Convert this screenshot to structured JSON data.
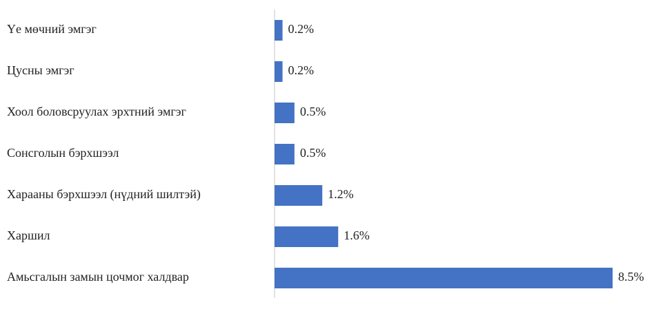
{
  "chart_data": {
    "type": "bar",
    "orientation": "horizontal",
    "categories": [
      "Үе мөчний эмгэг",
      "Цусны эмгэг",
      "Хоол боловсруулах эрхтний эмгэг",
      "Сонсголын бэрхшээл",
      "Харааны бэрхшээл (нүдний шилтэй)",
      "Харшил",
      "Амьсгалын замын цочмог халдвар"
    ],
    "values": [
      0.2,
      0.2,
      0.5,
      0.5,
      1.2,
      1.6,
      8.5
    ],
    "value_labels": [
      "0.2%",
      "0.2%",
      "0.5%",
      "0.5%",
      "1.2%",
      "1.6%",
      "8.5%"
    ],
    "color": "#4472c4"
  }
}
